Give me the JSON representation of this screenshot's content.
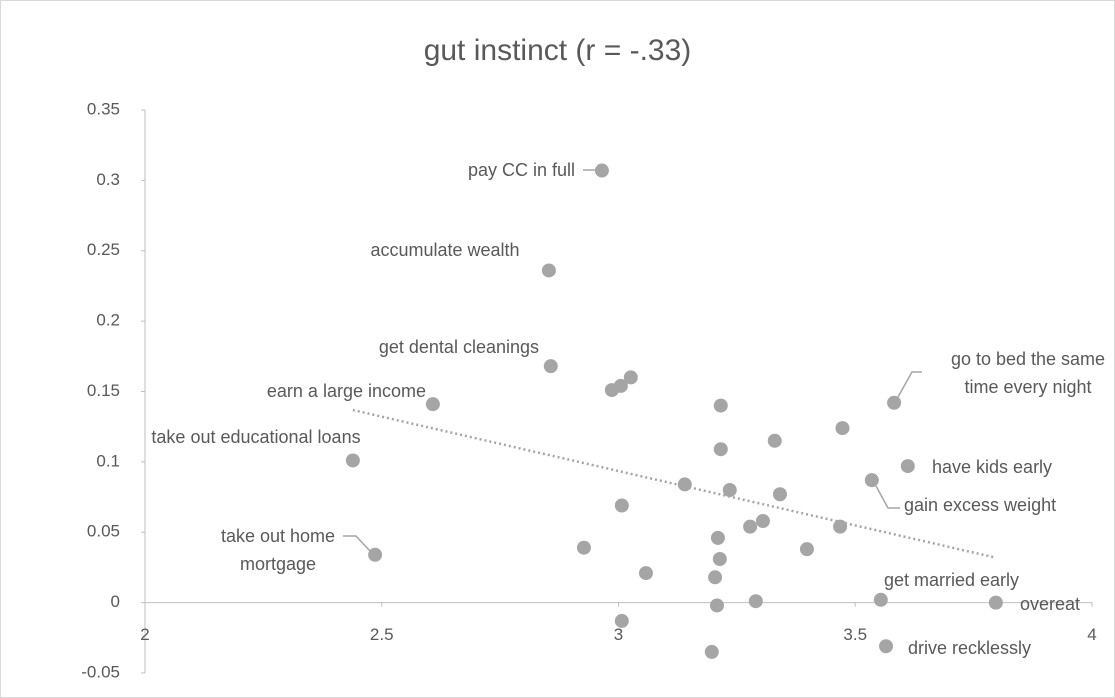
{
  "chart_data": {
    "type": "scatter",
    "title": "gut instinct (r = -.33)",
    "x": [
      2.965,
      2.853,
      2.857,
      2.608,
      2.439,
      2.486,
      3.582,
      3.611,
      3.535,
      3.554,
      3.797,
      3.565,
      2.986,
      3.005,
      3.026,
      3.216,
      3.216,
      3.33,
      3.473,
      3.14,
      3.235,
      3.341,
      3.007,
      3.468,
      3.278,
      3.305,
      3.21,
      2.927,
      3.398,
      3.214,
      3.058,
      3.204,
      3.208,
      3.29,
      3.007,
      3.197
    ],
    "values": [
      0.307,
      0.236,
      0.168,
      0.141,
      0.101,
      0.034,
      0.142,
      0.097,
      0.087,
      0.002,
      0,
      -0.031,
      0.151,
      0.154,
      0.16,
      0.14,
      0.109,
      0.115,
      0.124,
      0.084,
      0.08,
      0.077,
      0.069,
      0.054,
      0.054,
      0.058,
      0.046,
      0.039,
      0.038,
      0.031,
      0.021,
      0.018,
      -0.002,
      0.001,
      -0.013,
      -0.035
    ],
    "point_labels": [
      "pay CC in full",
      "accumulate wealth",
      "get dental cleanings",
      "earn a large income",
      "take out educational loans",
      "take out home mortgage",
      "go to bed the same time every night",
      "have kids early",
      "gain excess weight",
      "get married early",
      "overeat",
      "drive recklessly",
      null,
      null,
      null,
      null,
      null,
      null,
      null,
      null,
      null,
      null,
      null,
      null,
      null,
      null,
      null,
      null,
      null,
      null,
      null,
      null,
      null,
      null,
      null,
      null
    ],
    "color": "#a5a5a5",
    "trendline": true,
    "xlim": [
      2,
      4
    ],
    "xticks": [
      2,
      2.5,
      3,
      3.5,
      4
    ],
    "ylim": [
      -0.05,
      0.35
    ],
    "yticks": [
      -0.05,
      0,
      0.05,
      0.1,
      0.15,
      0.2,
      0.25,
      0.3,
      0.35
    ]
  }
}
